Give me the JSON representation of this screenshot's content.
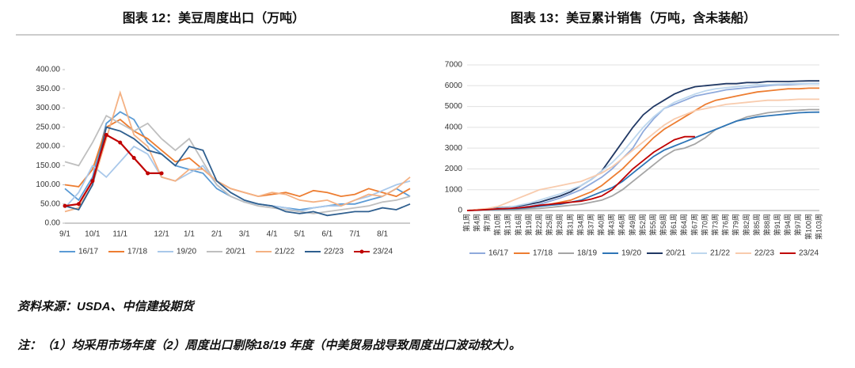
{
  "chart_data": [
    {
      "type": "line",
      "title": "图表 12：美豆周度出口（万吨）",
      "categories": [
        "9/1",
        null,
        "10/1",
        null,
        "11/1",
        null,
        null,
        "12/1",
        null,
        "1/1",
        null,
        "2/1",
        null,
        "3/1",
        null,
        "4/1",
        null,
        "5/1",
        null,
        "6/1",
        null,
        "7/1",
        null,
        "8/1",
        null,
        null
      ],
      "ylim": [
        0,
        400
      ],
      "yticks": [
        {
          "value": 0,
          "label": "0.00"
        },
        {
          "value": 50,
          "label": "50.00"
        },
        {
          "value": 100,
          "label": "100.00"
        },
        {
          "value": 150,
          "label": "150.00"
        },
        {
          "value": 200,
          "label": "200.00"
        },
        {
          "value": 250,
          "label": "250.00"
        },
        {
          "value": 300,
          "label": "300.00"
        },
        {
          "value": 350,
          "label": "350.00"
        },
        {
          "value": 400,
          "label": "400.00"
        }
      ],
      "series": [
        {
          "name": "16/17",
          "color": "#5b9bd5",
          "values": [
            90,
            60,
            120,
            260,
            290,
            270,
            210,
            180,
            150,
            140,
            130,
            90,
            70,
            55,
            50,
            45,
            40,
            35,
            40,
            45,
            50,
            50,
            60,
            70,
            90,
            70
          ]
        },
        {
          "name": "17/18",
          "color": "#ed7d31",
          "values": [
            100,
            95,
            140,
            250,
            270,
            240,
            220,
            190,
            160,
            170,
            140,
            110,
            90,
            80,
            70,
            75,
            80,
            70,
            85,
            80,
            70,
            75,
            90,
            80,
            70,
            90
          ]
        },
        {
          "name": "19/20",
          "color": "#a9c8ea",
          "values": [
            40,
            80,
            150,
            120,
            160,
            200,
            180,
            120,
            110,
            130,
            150,
            100,
            70,
            55,
            50,
            45,
            40,
            30,
            40,
            45,
            45,
            60,
            70,
            85,
            100,
            110
          ]
        },
        {
          "name": "20/21",
          "color": "#bfbfbf",
          "values": [
            160,
            150,
            210,
            280,
            260,
            240,
            260,
            220,
            190,
            220,
            160,
            100,
            70,
            55,
            45,
            40,
            35,
            30,
            25,
            30,
            35,
            40,
            45,
            55,
            60,
            70
          ]
        },
        {
          "name": "21/22",
          "color": "#f4b183",
          "values": [
            30,
            40,
            100,
            220,
            340,
            230,
            200,
            120,
            110,
            140,
            140,
            110,
            90,
            80,
            70,
            80,
            75,
            60,
            55,
            60,
            45,
            60,
            75,
            70,
            90,
            120
          ]
        },
        {
          "name": "22/23",
          "color": "#2f5f8f",
          "values": [
            45,
            35,
            100,
            250,
            240,
            220,
            190,
            180,
            150,
            200,
            190,
            110,
            80,
            60,
            50,
            45,
            30,
            25,
            30,
            20,
            25,
            30,
            30,
            40,
            35,
            50
          ]
        },
        {
          "name": "23/24",
          "color": "#c00000",
          "markers": true,
          "values": [
            45,
            50,
            110,
            230,
            210,
            170,
            130,
            130,
            null,
            null,
            null,
            null,
            null,
            null,
            null,
            null,
            null,
            null,
            null,
            null,
            null,
            null,
            null,
            null,
            null,
            null
          ]
        }
      ]
    },
    {
      "type": "line",
      "title": "图表 13：美豆累计销售（万吨，含未装船）",
      "categories": [
        "第1周",
        "第4周",
        "第7周",
        "第10周",
        "第13周",
        "第16周",
        "第19周",
        "第22周",
        "第25周",
        "第28周",
        "第31周",
        "第34周",
        "第37周",
        "第40周",
        "第43周",
        "第46周",
        "第49周",
        "第52周",
        "第55周",
        "第58周",
        "第61周",
        "第64周",
        "第67周",
        "第70周",
        "第73周",
        "第76周",
        "第79周",
        "第82周",
        "第85周",
        "第88周",
        "第91周",
        "第94周",
        "第97周",
        "第100周",
        "第103周"
      ],
      "ylim": [
        0,
        7000
      ],
      "yticks": [
        0,
        1000,
        2000,
        3000,
        4000,
        5000,
        6000,
        7000
      ],
      "series": [
        {
          "name": "16/17",
          "color": "#8faadc",
          "values": [
            0,
            30,
            60,
            80,
            100,
            150,
            200,
            300,
            450,
            600,
            800,
            1000,
            1300,
            1600,
            2000,
            2500,
            3000,
            3800,
            4400,
            4900,
            5100,
            5300,
            5500,
            5600,
            5700,
            5800,
            5850,
            5900,
            5950,
            6000,
            6050,
            6050,
            6080,
            6100,
            6100
          ]
        },
        {
          "name": "17/18",
          "color": "#ed7d31",
          "values": [
            0,
            20,
            40,
            60,
            80,
            100,
            150,
            200,
            300,
            400,
            500,
            700,
            900,
            1200,
            1600,
            2000,
            2500,
            3000,
            3500,
            3900,
            4200,
            4500,
            4800,
            5100,
            5300,
            5400,
            5500,
            5600,
            5700,
            5750,
            5800,
            5850,
            5850,
            5880,
            5880
          ]
        },
        {
          "name": "18/19",
          "color": "#a5a5a5",
          "values": [
            0,
            10,
            20,
            30,
            40,
            60,
            80,
            100,
            150,
            200,
            250,
            300,
            400,
            500,
            700,
            1000,
            1400,
            1800,
            2200,
            2600,
            2900,
            3000,
            3200,
            3500,
            3900,
            4100,
            4300,
            4500,
            4600,
            4700,
            4750,
            4800,
            4820,
            4850,
            4850
          ]
        },
        {
          "name": "19/20",
          "color": "#2e75b6",
          "values": [
            0,
            20,
            40,
            60,
            80,
            100,
            150,
            200,
            250,
            300,
            400,
            500,
            700,
            900,
            1100,
            1400,
            1800,
            2200,
            2600,
            2900,
            3100,
            3300,
            3500,
            3700,
            3900,
            4100,
            4300,
            4400,
            4500,
            4550,
            4600,
            4650,
            4700,
            4720,
            4730
          ]
        },
        {
          "name": "20/21",
          "color": "#203864",
          "values": [
            0,
            40,
            80,
            120,
            160,
            220,
            300,
            400,
            550,
            700,
            900,
            1200,
            1500,
            1900,
            2600,
            3300,
            4000,
            4600,
            5000,
            5300,
            5600,
            5800,
            5950,
            6000,
            6050,
            6100,
            6100,
            6150,
            6150,
            6200,
            6200,
            6200,
            6220,
            6230,
            6230
          ]
        },
        {
          "name": "21/22",
          "color": "#bdd7ee",
          "values": [
            0,
            30,
            60,
            100,
            150,
            250,
            350,
            500,
            650,
            800,
            1000,
            1200,
            1500,
            1900,
            2300,
            2800,
            3400,
            4000,
            4500,
            4900,
            5200,
            5400,
            5600,
            5750,
            5850,
            5900,
            5950,
            6000,
            6050,
            6050,
            6080,
            6100,
            6100,
            6100,
            6100
          ]
        },
        {
          "name": "22/23",
          "color": "#f8cbad",
          "values": [
            0,
            50,
            100,
            200,
            400,
            600,
            800,
            1000,
            1100,
            1200,
            1300,
            1400,
            1600,
            1800,
            2100,
            2500,
            2900,
            3300,
            3700,
            4100,
            4400,
            4600,
            4800,
            4900,
            5000,
            5100,
            5150,
            5200,
            5250,
            5300,
            5300,
            5320,
            5350,
            5350,
            5350
          ]
        },
        {
          "name": "23/24",
          "color": "#c00000",
          "values": [
            0,
            20,
            50,
            80,
            100,
            130,
            180,
            250,
            300,
            350,
            400,
            450,
            550,
            700,
            1000,
            1500,
            2000,
            2400,
            2800,
            3100,
            3400,
            3550,
            3550,
            null,
            null,
            null,
            null,
            null,
            null,
            null,
            null,
            null,
            null,
            null,
            null
          ]
        }
      ]
    }
  ],
  "source": "资料来源：USDA、中信建投期货",
  "note": "注：（1）均采用市场年度（2）周度出口剔除18/19 年度（中美贸易战导致周度出口波动较大）。"
}
